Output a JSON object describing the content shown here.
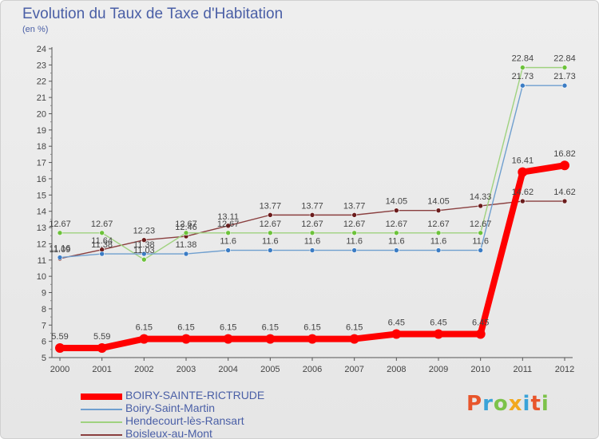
{
  "header": {
    "title": "Evolution du Taux de Taxe d'Habitation",
    "subtitle": "(en %)"
  },
  "brand": {
    "text": "Proxiti",
    "colors": [
      "#e8552b",
      "#3aa3d8",
      "#7cc24a",
      "#f2a81e",
      "#3aa3d8",
      "#e8552b",
      "#7cc24a"
    ]
  },
  "chart_data": {
    "type": "line",
    "x": [
      "2000",
      "2001",
      "2002",
      "2003",
      "2004",
      "2005",
      "2006",
      "2007",
      "2008",
      "2009",
      "2010",
      "2011",
      "2012"
    ],
    "ylim": [
      5,
      24
    ],
    "yticks": [
      5,
      6,
      7,
      8,
      9,
      10,
      11,
      12,
      13,
      14,
      15,
      16,
      17,
      18,
      19,
      20,
      21,
      22,
      23,
      24
    ],
    "grid": false,
    "legend": "bottom-left",
    "series": [
      {
        "name": "BOIRY-SAINTE-RICTRUDE",
        "color": "#ff0000",
        "marker": "#ff0000",
        "values": [
          5.59,
          5.59,
          6.15,
          6.15,
          6.15,
          6.15,
          6.15,
          6.15,
          6.45,
          6.45,
          6.45,
          16.41,
          16.82
        ],
        "labels": [
          "5.59",
          "5.59",
          "6.15",
          "6.15",
          "6.15",
          "6.15",
          "6.15",
          "6.15",
          "6.45",
          "6.45",
          "6.45",
          "16.41",
          "16.82"
        ]
      },
      {
        "name": "Boiry-Saint-Martin",
        "color": "#6f9fcf",
        "marker": "#3b7cc4",
        "values": [
          11.16,
          11.38,
          11.38,
          11.38,
          11.6,
          11.6,
          11.6,
          11.6,
          11.6,
          11.6,
          11.6,
          21.73,
          21.73
        ],
        "labels": [
          "11.16",
          "11.38",
          "11.38",
          "11.38",
          "11.6",
          "11.6",
          "11.6",
          "11.6",
          "11.6",
          "11.6",
          "11.6",
          "21.73",
          "21.73"
        ]
      },
      {
        "name": "Hendecourt-lès-Ransart",
        "color": "#9fd27f",
        "marker": "#6cc23a",
        "values": [
          12.67,
          12.67,
          11.03,
          12.67,
          12.67,
          12.67,
          12.67,
          12.67,
          12.67,
          12.67,
          12.67,
          22.84,
          22.84
        ],
        "labels": [
          "12.67",
          "12.67",
          "11.03",
          "12.67",
          "12.67",
          "12.67",
          "12.67",
          "12.67",
          "12.67",
          "12.67",
          "12.67",
          "22.84",
          "22.84"
        ]
      },
      {
        "name": "Boisleux-au-Mont",
        "color": "#8a3f3f",
        "marker": "#6b1c1c",
        "values": [
          11.09,
          11.64,
          12.23,
          12.46,
          13.11,
          13.77,
          13.77,
          13.77,
          14.05,
          14.05,
          14.33,
          14.62,
          14.62
        ],
        "labels": [
          "11.09",
          "11.64",
          "12.23",
          "12.46",
          "13.11",
          "13.77",
          "13.77",
          "13.77",
          "14.05",
          "14.05",
          "14.33",
          "14.62",
          "14.62"
        ]
      }
    ]
  }
}
